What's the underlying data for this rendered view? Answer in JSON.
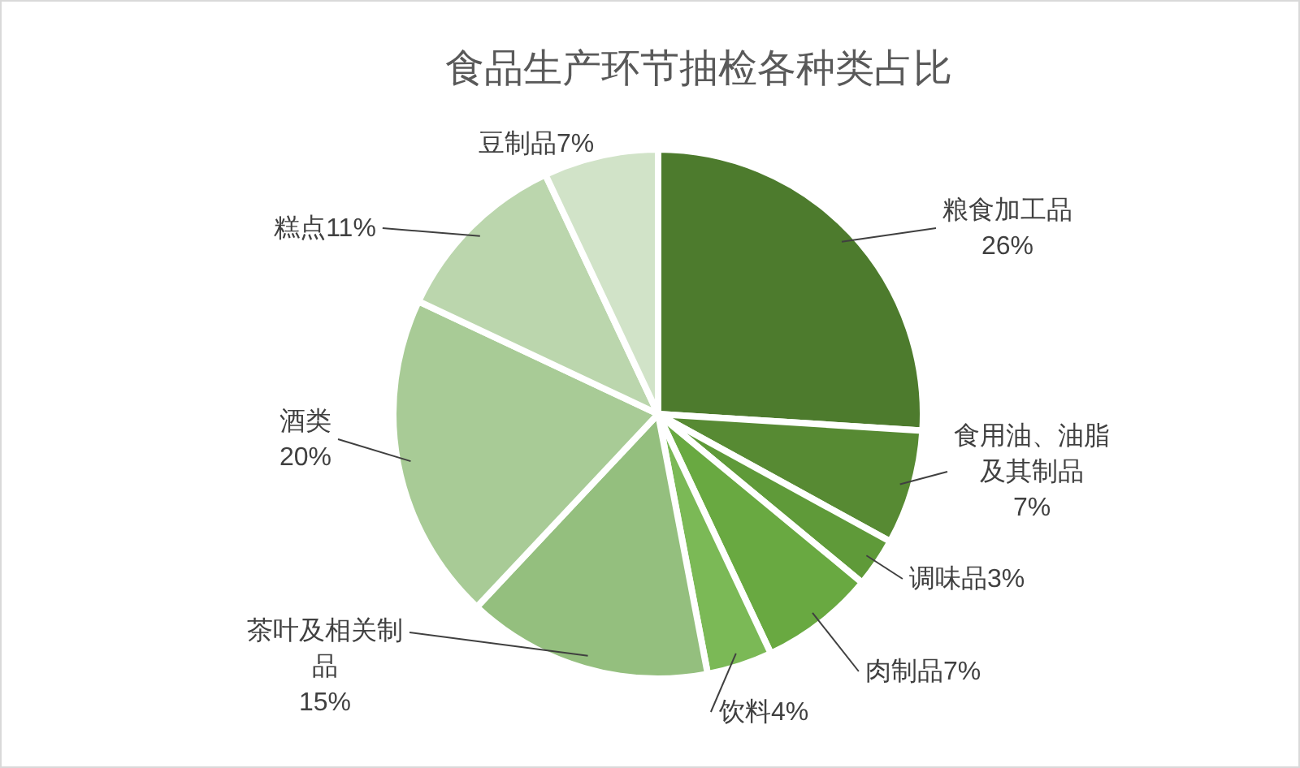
{
  "chart_data": {
    "type": "pie",
    "title": "食品生产环节抽检各种类占比",
    "categories": [
      "粮食加工品",
      "食用油、油脂及其制品",
      "调味品",
      "肉制品",
      "饮料",
      "茶叶及相关制品",
      "酒类",
      "糕点",
      "豆制品"
    ],
    "values": [
      26,
      7,
      3,
      7,
      4,
      15,
      20,
      11,
      7
    ],
    "value_labels": [
      "26%",
      "7%",
      "3%",
      "7%",
      "4%",
      "15%",
      "20%",
      "11%",
      "7%"
    ],
    "colors": [
      "#4d7b2d",
      "#578a33",
      "#5f9a39",
      "#69a941",
      "#7bb956",
      "#94bf7e",
      "#a8cb96",
      "#bbd6ad",
      "#d1e3c8"
    ]
  }
}
